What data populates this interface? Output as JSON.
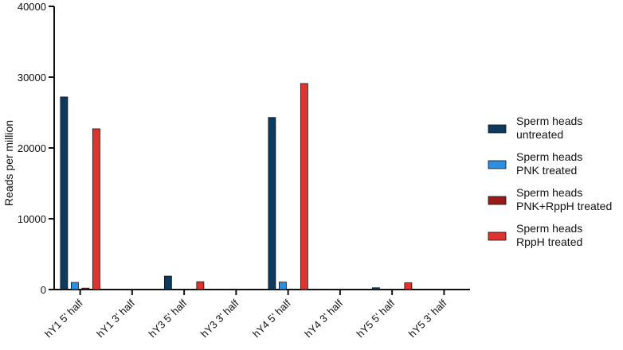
{
  "chart_data": {
    "type": "bar",
    "ylabel": "Reads per million",
    "xlabel": "",
    "ylim": [
      0,
      40000
    ],
    "yticks": [
      0,
      10000,
      20000,
      30000,
      40000
    ],
    "categories": [
      "hY1 5' half",
      "hY1 3' half",
      "hY3 5' half",
      "hY3 3' half",
      "hY4 5' half",
      "hY4 3' half",
      "hY5 5' half",
      "hY5 3' half"
    ],
    "legend_position": "right",
    "grid": false,
    "series": [
      {
        "name": "Sperm heads untreated",
        "legend_lines": [
          "Sperm heads",
          "untreated"
        ],
        "color": "#0d3a5f",
        "values": [
          27200,
          0,
          1900,
          0,
          24300,
          0,
          250,
          0
        ]
      },
      {
        "name": "Sperm heads PNK treated",
        "legend_lines": [
          "Sperm heads",
          "PNK treated"
        ],
        "color": "#2e8fe0",
        "values": [
          1000,
          0,
          0,
          0,
          1050,
          0,
          0,
          0
        ]
      },
      {
        "name": "Sperm heads PNK+RppH treated",
        "legend_lines": [
          "Sperm heads",
          "PNK+RppH treated"
        ],
        "color": "#9a1a1a",
        "values": [
          200,
          0,
          0,
          0,
          0,
          0,
          0,
          0
        ]
      },
      {
        "name": "Sperm heads RppH treated",
        "legend_lines": [
          "Sperm heads",
          "RppH treated"
        ],
        "color": "#e0322f",
        "values": [
          22700,
          0,
          1100,
          0,
          29100,
          0,
          950,
          0
        ]
      }
    ]
  }
}
